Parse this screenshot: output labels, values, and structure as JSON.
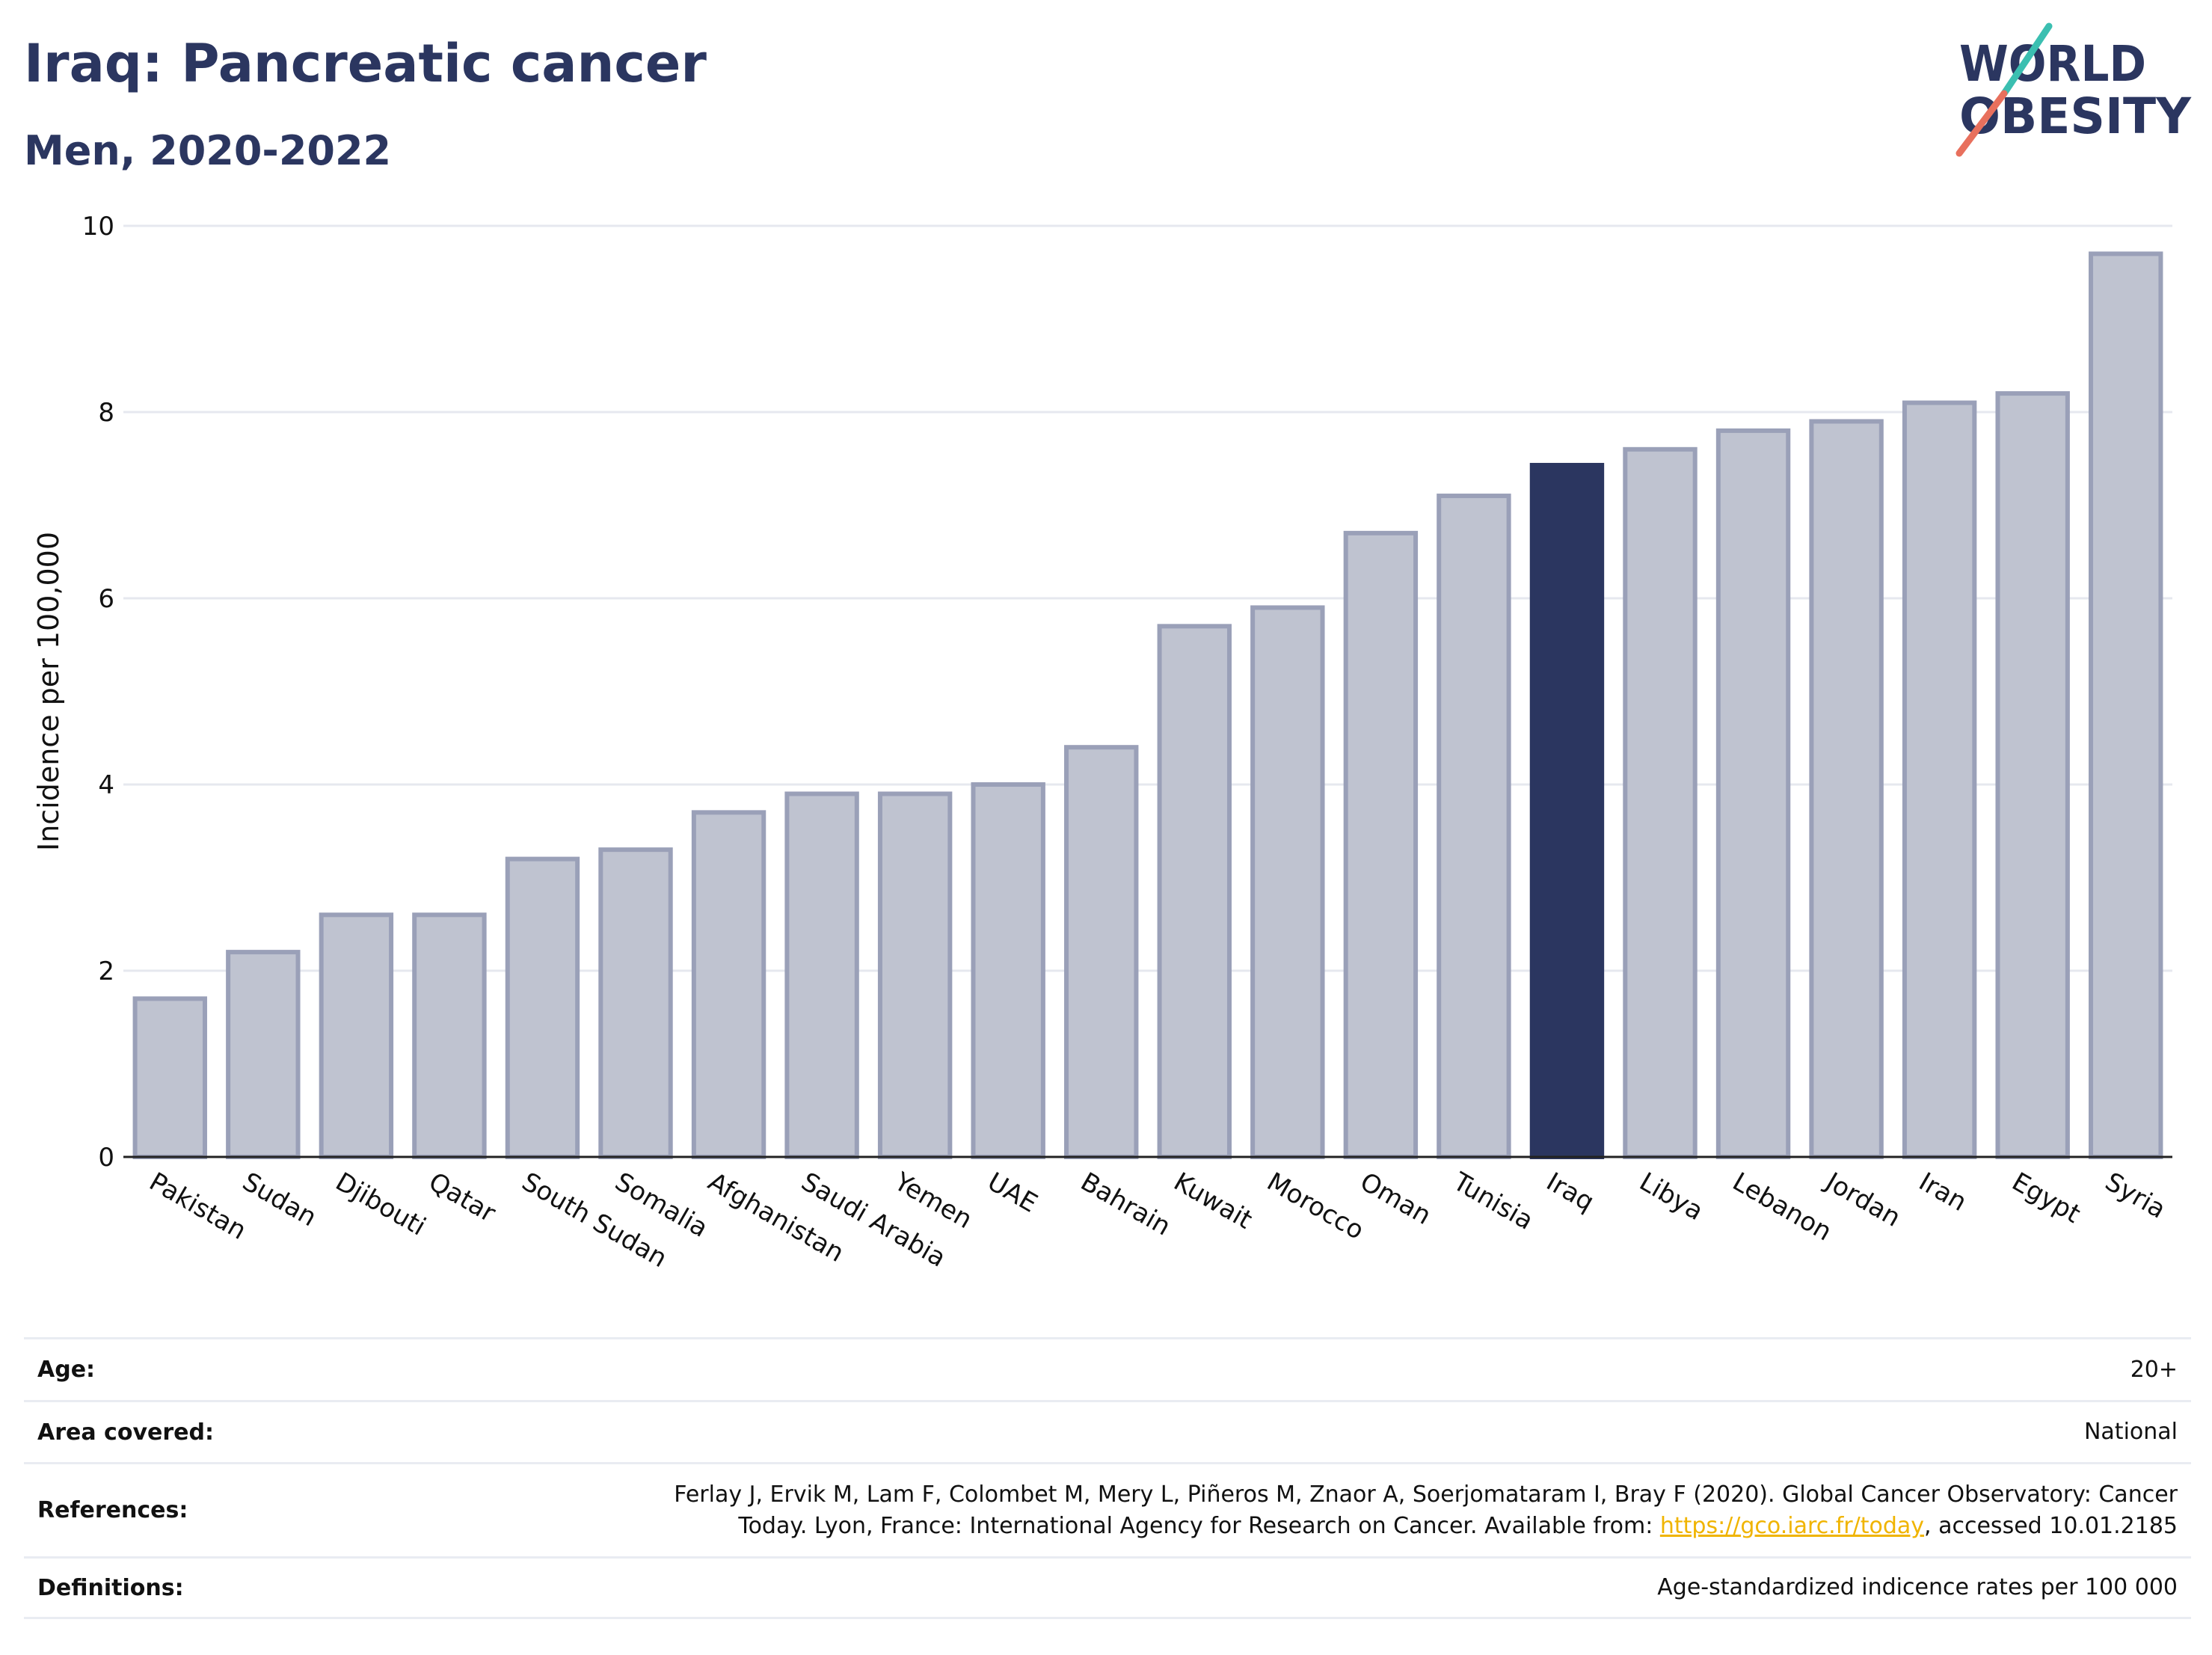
{
  "header": {
    "title": "Iraq: Pancreatic cancer",
    "subtitle": "Men, 2020-2022"
  },
  "logo": {
    "line1": "WORLD",
    "line2": "OBESITY",
    "text_color": "#2b3660",
    "slash_top_color": "#3bbfb1",
    "slash_bottom_color": "#e8705d"
  },
  "chart_data": {
    "type": "bar",
    "categories": [
      "Pakistan",
      "Sudan",
      "Djibouti",
      "Qatar",
      "South Sudan",
      "Somalia",
      "Afghanistan",
      "Saudi Arabia",
      "Yemen",
      "UAE",
      "Bahrain",
      "Kuwait",
      "Morocco",
      "Oman",
      "Tunisia",
      "Iraq",
      "Libya",
      "Lebanon",
      "Jordan",
      "Iran",
      "Egypt",
      "Syria"
    ],
    "values": [
      1.7,
      2.2,
      2.6,
      2.6,
      3.2,
      3.3,
      3.7,
      3.9,
      3.9,
      4.0,
      4.4,
      5.7,
      5.9,
      6.7,
      7.1,
      7.43,
      7.6,
      7.8,
      7.9,
      8.1,
      8.2,
      9.7
    ],
    "highlight": "Iraq",
    "ylabel": "Incidence per 100,000",
    "xlabel": "",
    "ylim": [
      0,
      10
    ],
    "yticks": [
      0,
      2,
      4,
      6,
      8,
      10
    ],
    "grid": true,
    "colors": {
      "bar_fill": "#bfc3d0",
      "bar_stroke": "#9aa0b8",
      "highlight_fill": "#2b3660",
      "gridline": "#e6e8ef"
    }
  },
  "info_table": [
    {
      "label": "Age:",
      "value": "20+"
    },
    {
      "label": "Area covered:",
      "value": "National"
    },
    {
      "label": "References:",
      "value_line1": "Ferlay J, Ervik M, Lam F, Colombet M, Mery L, Piñeros M, Znaor A, Soerjomataram I, Bray F (2020). Global Cancer Observatory: Cancer",
      "value_line2_pre": "Today. Lyon, France: International Agency for Research on Cancer. Available from: ",
      "link": "https://gco.iarc.fr/today",
      "value_line2_post": ", accessed 10.01.2185"
    },
    {
      "label": "Definitions:",
      "value": "Age-standardized indicence rates per 100 000"
    }
  ]
}
